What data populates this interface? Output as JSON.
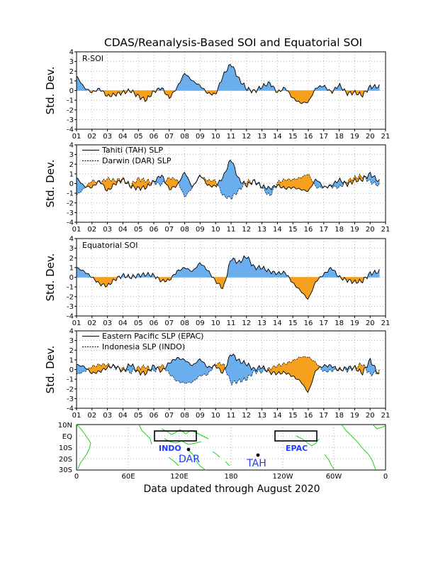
{
  "title": "CDAS/Reanalysis-Based SOI and Equatorial SOI",
  "footer": "Data updated through August 2020",
  "colors": {
    "positive": "#6aaeee",
    "negative": "#f5a01e",
    "land": "#22cc22",
    "map_label": "#1e3cff",
    "grid": "#999999"
  },
  "chart_data": [
    {
      "type": "area",
      "ylabel": "Std. Dev.",
      "ylim": [
        -4,
        4
      ],
      "yticks": [
        4,
        3,
        2,
        1,
        0,
        -1,
        -2,
        -3,
        -4
      ],
      "xlim": [
        2001.0,
        2021.0
      ],
      "xtick_labels": [
        "01",
        "02",
        "03",
        "04",
        "05",
        "06",
        "07",
        "08",
        "09",
        "10",
        "11",
        "12",
        "13",
        "14",
        "15",
        "16",
        "17",
        "18",
        "19",
        "20",
        "21"
      ],
      "grid": "dotted",
      "annotation": "R-SOI",
      "x": [
        2001.0,
        2001.5,
        2002.0,
        2002.5,
        2003.0,
        2003.5,
        2004.0,
        2004.5,
        2005.0,
        2005.5,
        2006.0,
        2006.5,
        2007.0,
        2007.5,
        2008.0,
        2008.5,
        2009.0,
        2009.5,
        2010.0,
        2010.5,
        2011.0,
        2011.5,
        2012.0,
        2012.5,
        2013.0,
        2013.5,
        2014.0,
        2014.5,
        2015.0,
        2015.5,
        2016.0,
        2016.5,
        2017.0,
        2017.5,
        2018.0,
        2018.5,
        2019.0,
        2019.5,
        2020.0,
        2020.6
      ],
      "values": [
        1.5,
        0.3,
        -0.2,
        0.2,
        -0.6,
        -0.4,
        -0.2,
        0.0,
        -0.6,
        -1.0,
        -0.1,
        0.3,
        -0.8,
        0.3,
        1.8,
        1.0,
        0.5,
        -0.3,
        -0.4,
        1.6,
        2.8,
        1.2,
        0.2,
        -0.1,
        0.4,
        0.8,
        -0.2,
        0.3,
        -0.8,
        -1.3,
        -1.2,
        0.3,
        0.5,
        -0.2,
        0.6,
        -0.3,
        -0.2,
        -0.5,
        0.4,
        0.4
      ]
    },
    {
      "type": "area",
      "ylabel": "Std. Dev.",
      "ylim": [
        -4,
        4
      ],
      "yticks": [
        4,
        3,
        2,
        1,
        0,
        -1,
        -2,
        -3,
        -4
      ],
      "xlim": [
        2001.0,
        2021.0
      ],
      "xtick_labels": [
        "01",
        "02",
        "03",
        "04",
        "05",
        "06",
        "07",
        "08",
        "09",
        "10",
        "11",
        "12",
        "13",
        "14",
        "15",
        "16",
        "17",
        "18",
        "19",
        "20",
        "21"
      ],
      "grid": "dotted",
      "legend": {
        "placement": "top-left",
        "entries": [
          {
            "name": "Tahiti (TAH) SLP",
            "style": "solid"
          },
          {
            "name": "Darwin (DAR) SLP",
            "style": "dotted"
          }
        ]
      },
      "x": [
        2001.0,
        2001.5,
        2002.0,
        2002.5,
        2003.0,
        2003.5,
        2004.0,
        2004.5,
        2005.0,
        2005.5,
        2006.0,
        2006.5,
        2007.0,
        2007.5,
        2008.0,
        2008.5,
        2009.0,
        2009.5,
        2010.0,
        2010.5,
        2011.0,
        2011.5,
        2012.0,
        2012.5,
        2013.0,
        2013.5,
        2014.0,
        2014.5,
        2015.0,
        2015.5,
        2016.0,
        2016.5,
        2017.0,
        2017.5,
        2018.0,
        2018.5,
        2019.0,
        2019.5,
        2020.0,
        2020.6
      ],
      "series": [
        {
          "name": "Tahiti (TAH) SLP",
          "values": [
            0.6,
            -0.3,
            -0.4,
            0.3,
            -0.8,
            0.0,
            0.4,
            -0.3,
            -0.5,
            -0.4,
            0.2,
            0.9,
            -0.6,
            -0.2,
            1.2,
            -0.4,
            0.9,
            -0.2,
            -0.3,
            0.7,
            2.6,
            0.4,
            -0.2,
            0.3,
            -0.3,
            -0.5,
            -0.2,
            -0.5,
            -0.4,
            -0.6,
            -0.8,
            0.5,
            -0.4,
            -0.2,
            0.4,
            -0.1,
            0.3,
            0.4,
            1.0,
            0.2
          ]
        },
        {
          "name": "Darwin (DAR) SLP",
          "values": [
            -1.2,
            -0.5,
            0.3,
            0.1,
            0.5,
            0.3,
            0.5,
            -0.2,
            0.5,
            0.3,
            0.1,
            -0.1,
            0.6,
            0.4,
            -1.4,
            -0.4,
            0.8,
            0.3,
            0.3,
            -1.3,
            -1.5,
            -0.7,
            0.2,
            0.2,
            -0.4,
            -1.3,
            0.1,
            0.4,
            0.4,
            0.6,
            1.0,
            -0.4,
            -0.4,
            -0.3,
            -0.4,
            0.2,
            0.6,
            0.8,
            0.2,
            -0.2
          ]
        }
      ]
    },
    {
      "type": "area",
      "ylabel": "Std. Dev.",
      "ylim": [
        -4,
        4
      ],
      "yticks": [
        4,
        3,
        2,
        1,
        0,
        -1,
        -2,
        -3,
        -4
      ],
      "xlim": [
        2001.0,
        2021.0
      ],
      "xtick_labels": [
        "01",
        "02",
        "03",
        "04",
        "05",
        "06",
        "07",
        "08",
        "09",
        "10",
        "11",
        "12",
        "13",
        "14",
        "15",
        "16",
        "17",
        "18",
        "19",
        "20",
        "21"
      ],
      "grid": "dotted",
      "annotation": "Equatorial SOI",
      "x": [
        2001.0,
        2001.5,
        2002.0,
        2002.5,
        2003.0,
        2003.5,
        2004.0,
        2004.5,
        2005.0,
        2005.5,
        2006.0,
        2006.5,
        2007.0,
        2007.5,
        2008.0,
        2008.5,
        2009.0,
        2009.5,
        2010.0,
        2010.5,
        2011.0,
        2011.5,
        2012.0,
        2012.5,
        2013.0,
        2013.5,
        2014.0,
        2014.5,
        2015.0,
        2015.5,
        2016.0,
        2016.5,
        2017.0,
        2017.5,
        2018.0,
        2018.5,
        2019.0,
        2019.5,
        2020.0,
        2020.6
      ],
      "values": [
        1.0,
        0.6,
        0.0,
        -0.7,
        -0.9,
        -0.2,
        0.2,
        0.0,
        0.2,
        0.3,
        0.2,
        -0.4,
        -0.3,
        0.6,
        1.0,
        0.6,
        1.5,
        0.7,
        -0.4,
        -1.2,
        2.0,
        1.5,
        2.2,
        1.0,
        1.0,
        0.6,
        0.4,
        0.5,
        -0.6,
        -1.4,
        -2.3,
        -0.4,
        0.3,
        1.0,
        0.0,
        -0.3,
        -0.5,
        -0.4,
        0.4,
        0.6
      ]
    },
    {
      "type": "area",
      "ylabel": "Std. Dev.",
      "ylim": [
        -4,
        4
      ],
      "yticks": [
        4,
        3,
        2,
        1,
        0,
        -1,
        -2,
        -3,
        -4
      ],
      "xlim": [
        2001.0,
        2021.0
      ],
      "xtick_labels": [
        "01",
        "02",
        "03",
        "04",
        "05",
        "06",
        "07",
        "08",
        "09",
        "10",
        "11",
        "12",
        "13",
        "14",
        "15",
        "16",
        "17",
        "18",
        "19",
        "20",
        "21"
      ],
      "grid": "dotted",
      "legend": {
        "placement": "top-left",
        "entries": [
          {
            "name": "Eastern Pacific SLP (EPAC)",
            "style": "solid"
          },
          {
            "name": "Indonesia SLP (INDO)",
            "style": "dotted"
          }
        ]
      },
      "x": [
        2001.0,
        2001.5,
        2002.0,
        2002.5,
        2003.0,
        2003.5,
        2004.0,
        2004.5,
        2005.0,
        2005.5,
        2006.0,
        2006.5,
        2007.0,
        2007.5,
        2008.0,
        2008.5,
        2009.0,
        2009.5,
        2010.0,
        2010.5,
        2011.0,
        2011.5,
        2012.0,
        2012.5,
        2013.0,
        2013.5,
        2014.0,
        2014.5,
        2015.0,
        2015.5,
        2016.0,
        2016.5,
        2017.0,
        2017.5,
        2018.0,
        2018.5,
        2019.0,
        2019.5,
        2020.0,
        2020.6
      ],
      "series": [
        {
          "name": "Eastern Pacific SLP (EPAC)",
          "values": [
            0.5,
            0.3,
            -0.4,
            -0.2,
            0.2,
            0.4,
            -0.2,
            0.6,
            -0.3,
            -0.4,
            0.4,
            -0.2,
            0.7,
            1.2,
            1.0,
            0.4,
            1.1,
            0.2,
            0.4,
            -0.4,
            1.7,
            0.9,
            0.6,
            0.0,
            0.3,
            -0.3,
            -0.4,
            -0.3,
            -0.7,
            -1.2,
            -2.4,
            0.0,
            0.4,
            0.4,
            -0.1,
            0.2,
            0.2,
            -0.4,
            1.0,
            -0.6
          ]
        },
        {
          "name": "Indonesia SLP (INDO)",
          "values": [
            -0.5,
            -0.2,
            0.3,
            0.5,
            0.5,
            0.2,
            0.1,
            -0.3,
            0.2,
            0.3,
            -0.2,
            0.5,
            -0.4,
            -1.2,
            -1.4,
            -1.3,
            -0.6,
            -0.5,
            0.6,
            0.6,
            -1.4,
            -1.2,
            -1.0,
            -0.2,
            -0.2,
            0.1,
            0.4,
            0.6,
            0.9,
            1.3,
            1.3,
            0.7,
            -0.2,
            -0.1,
            0.1,
            -0.1,
            0.2,
            0.6,
            -0.5,
            -0.2
          ]
        }
      ]
    }
  ],
  "map": {
    "y_labels": [
      "10N",
      "EQ",
      "10S",
      "20S",
      "30S"
    ],
    "x_labels": [
      "0",
      "60E",
      "120E",
      "180",
      "120W",
      "60W",
      "0"
    ],
    "regions": [
      {
        "label": "INDO"
      },
      {
        "label": "EPAC"
      }
    ],
    "stations": [
      {
        "label": "DAR"
      },
      {
        "label": "TAH"
      }
    ]
  }
}
